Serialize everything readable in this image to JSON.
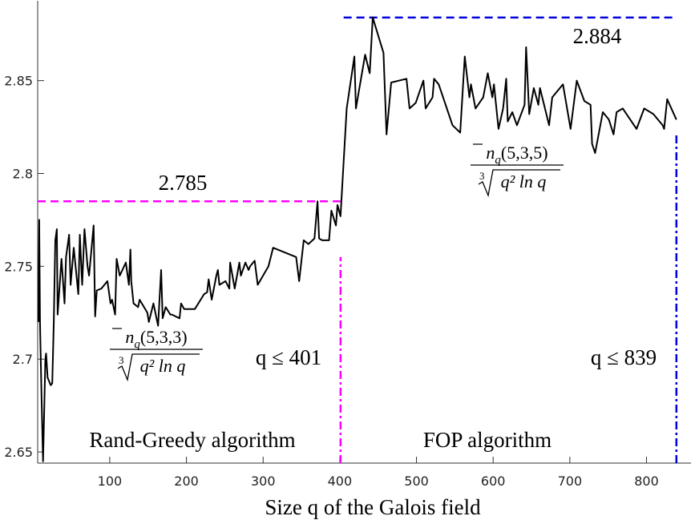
{
  "chart_data": {
    "type": "line",
    "xlabel": "Size q of the Galois field",
    "xlim": [
      6,
      858
    ],
    "ylim": [
      2.644,
      2.893
    ],
    "xticks": [
      100,
      200,
      300,
      400,
      500,
      600,
      700,
      800
    ],
    "yticks": [
      2.65,
      2.7,
      2.75,
      2.8,
      2.85
    ],
    "grid": false,
    "series": [
      {
        "color": "#000000",
        "x": [
          7,
          8,
          9,
          11,
          13,
          16,
          17,
          19,
          23,
          25,
          27,
          29,
          31,
          32,
          37,
          41,
          43,
          47,
          49,
          53,
          59,
          61,
          64,
          67,
          71,
          73,
          79,
          81,
          83,
          89,
          97,
          101,
          103,
          107,
          109,
          113,
          121,
          125,
          127,
          128,
          131,
          137,
          139,
          149,
          151,
          157,
          163,
          167,
          169,
          173,
          179,
          181,
          191,
          193,
          197,
          199,
          211,
          223,
          227,
          229,
          233,
          239,
          241,
          243,
          251,
          256,
          257,
          263,
          269,
          271,
          277,
          281,
          283,
          289,
          293,
          307,
          313,
          343,
          347,
          353,
          359,
          367,
          371,
          373,
          377,
          386,
          389,
          395,
          397,
          401,
          409,
          419,
          421,
          433,
          439,
          443,
          457,
          461,
          467,
          487,
          491,
          499,
          509,
          512,
          521,
          523,
          529,
          547,
          557,
          563,
          569,
          571,
          577,
          587,
          593,
          599,
          601,
          607,
          613,
          617,
          619,
          625,
          631,
          641,
          643,
          647,
          653,
          659,
          661,
          673,
          677,
          691,
          701,
          709,
          719,
          727,
          729,
          733,
          743,
          751,
          757,
          761,
          769,
          787,
          797,
          809,
          821,
          823,
          827,
          839
        ],
        "values": [
          2.72,
          2.775,
          2.72,
          2.68,
          2.645,
          2.7,
          2.703,
          2.69,
          2.686,
          2.687,
          2.72,
          2.764,
          2.77,
          2.724,
          2.754,
          2.73,
          2.755,
          2.767,
          2.74,
          2.76,
          2.735,
          2.767,
          2.74,
          2.77,
          2.75,
          2.745,
          2.772,
          2.723,
          2.737,
          2.738,
          2.742,
          2.73,
          2.732,
          2.724,
          2.754,
          2.745,
          2.752,
          2.74,
          2.759,
          2.742,
          2.73,
          2.728,
          2.732,
          2.725,
          2.72,
          2.73,
          2.718,
          2.748,
          2.722,
          2.728,
          2.724,
          2.724,
          2.722,
          2.73,
          2.727,
          2.727,
          2.727,
          2.735,
          2.736,
          2.743,
          2.732,
          2.745,
          2.748,
          2.74,
          2.742,
          2.738,
          2.752,
          2.738,
          2.752,
          2.745,
          2.752,
          2.748,
          2.75,
          2.753,
          2.74,
          2.75,
          2.76,
          2.755,
          2.742,
          2.764,
          2.762,
          2.765,
          2.785,
          2.765,
          2.764,
          2.764,
          2.78,
          2.772,
          2.783,
          2.777,
          2.835,
          2.863,
          2.835,
          2.864,
          2.854,
          2.884,
          2.865,
          2.821,
          2.849,
          2.851,
          2.835,
          2.838,
          2.85,
          2.835,
          2.841,
          2.851,
          2.848,
          2.826,
          2.822,
          2.863,
          2.841,
          2.848,
          2.835,
          2.841,
          2.854,
          2.841,
          2.848,
          2.824,
          2.835,
          2.851,
          2.828,
          2.833,
          2.826,
          2.837,
          2.868,
          2.832,
          2.846,
          2.837,
          2.846,
          2.826,
          2.841,
          2.848,
          2.824,
          2.85,
          2.839,
          2.837,
          2.816,
          2.811,
          2.833,
          2.829,
          2.821,
          2.833,
          2.835,
          2.824,
          2.835,
          2.832,
          2.826,
          2.824,
          2.84,
          2.829
        ]
      }
    ],
    "reference_lines": [
      {
        "orientation": "horizontal",
        "value": 2.785,
        "span": [
          6,
          401
        ],
        "color": "#ff00ff",
        "style": "dashed"
      },
      {
        "orientation": "vertical",
        "value": 401,
        "span": [
          2.644,
          2.755
        ],
        "color": "#ff00ff",
        "style": "dashdot"
      },
      {
        "orientation": "horizontal",
        "value": 2.884,
        "span": [
          405,
          839
        ],
        "color": "#0000dd",
        "style": "dashed"
      },
      {
        "orientation": "vertical",
        "value": 839,
        "span": [
          2.644,
          2.822
        ],
        "color": "#0000dd",
        "style": "dashdot"
      }
    ],
    "annotations": [
      "2.785",
      "2.884",
      "q ≤ 401",
      "q ≤ 839",
      "Rand-Greedy algorithm",
      "FOP algorithm"
    ],
    "formulas": [
      {
        "symbol": "n",
        "subscript": "q",
        "args": "(5,3,3)",
        "root_index": "3",
        "radicand": "q² ln q"
      },
      {
        "symbol": "n",
        "subscript": "q",
        "args": "(5,3,5)",
        "root_index": "3",
        "radicand": "q² ln q"
      }
    ]
  }
}
